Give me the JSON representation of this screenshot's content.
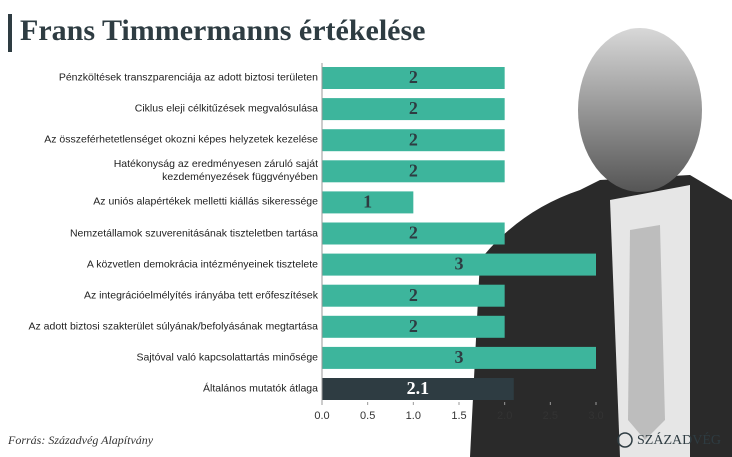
{
  "chart_data": {
    "type": "bar",
    "title": "Frans Timmermanns értékelése",
    "categories": [
      "Pénzköltések transzparenciája az adott biztosi területen",
      "Ciklus eleji célkitűzések megvalósulása",
      "Az összeférhetetlenséget okozni képes helyzetek kezelése",
      "Hatékonyság az eredményesen záruló saját\nkezdeményezések függvényében",
      "Az uniós alapértékek melletti kiállás sikeressége",
      "Nemzetállamok szuverenitásának tiszteletben tartása",
      "A közvetlen demokrácia intézményeinek tisztelete",
      "Az integrációelmélyítés irányába tett erőfeszítések",
      "Az adott biztosi szakterület súlyának/befolyásának megtartása",
      "Sajtóval való kapcsolattartás minősége",
      "Általános mutatók átlaga"
    ],
    "values": [
      2,
      2,
      2,
      2,
      1,
      2,
      3,
      2,
      2,
      3,
      2.1
    ],
    "colors": [
      "#3db59c",
      "#3db59c",
      "#3db59c",
      "#3db59c",
      "#3db59c",
      "#3db59c",
      "#3db59c",
      "#3db59c",
      "#3db59c",
      "#3db59c",
      "#2e3c42"
    ],
    "xlim": [
      0,
      3
    ],
    "xticks": [
      {
        "value": 0,
        "label": "0.0"
      },
      0.5,
      {
        "value": 1,
        "label": "1.0"
      },
      1.5,
      {
        "value": 2,
        "label": "2.0"
      },
      2.5,
      {
        "value": 3,
        "label": "3.0"
      }
    ],
    "source": "Forrás: Századvég Alapítvány",
    "logo": "SZÁZADVÉG"
  }
}
